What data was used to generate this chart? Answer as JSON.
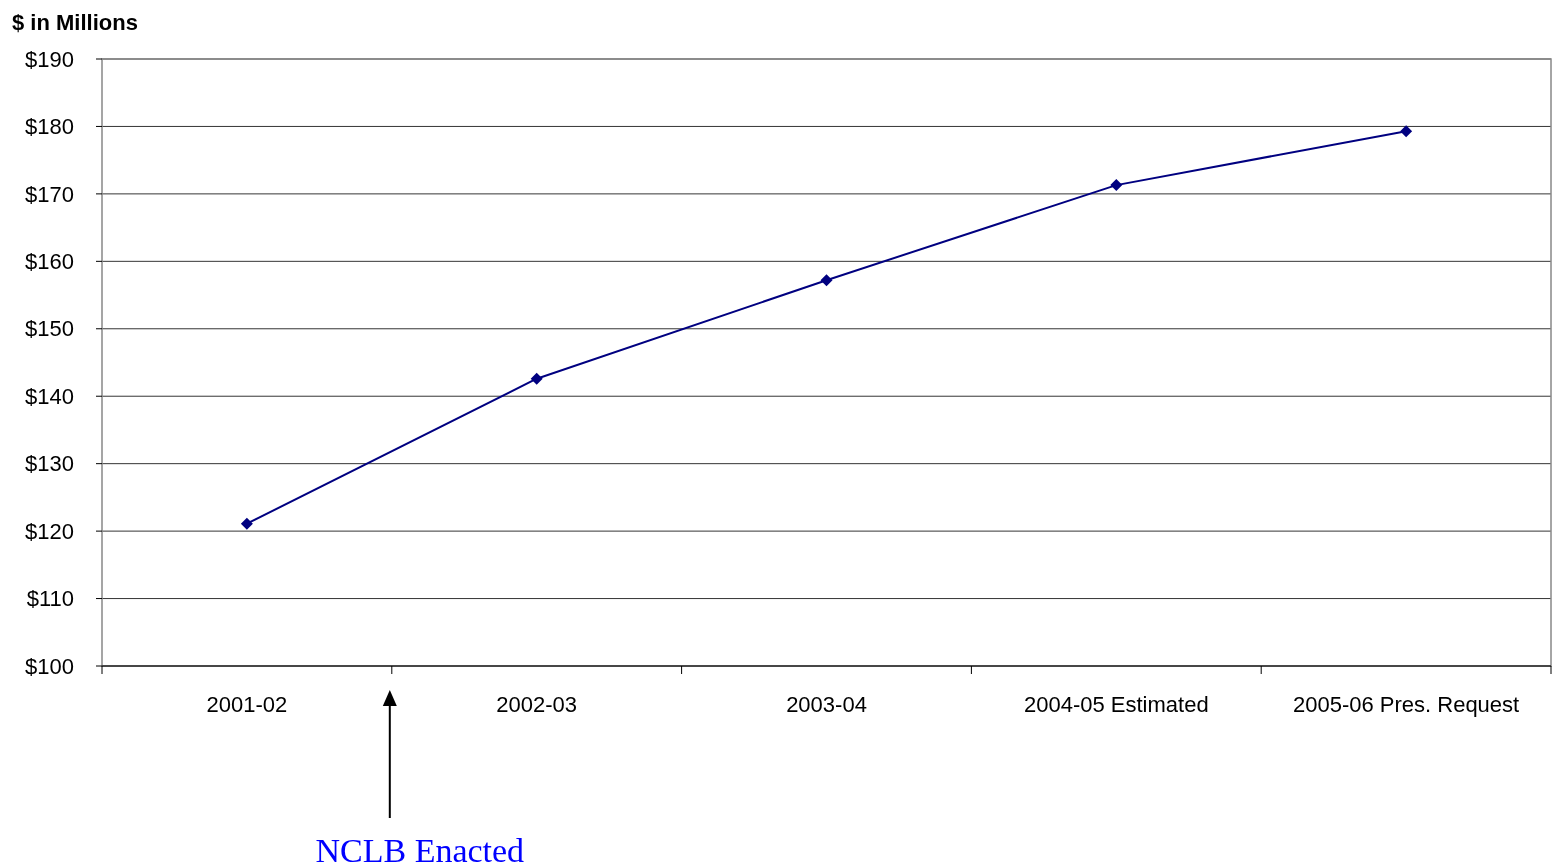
{
  "chart_data": {
    "type": "line",
    "ylabel": "$ in Millions",
    "categories": [
      "2001-02",
      "2002-03",
      "2003-04",
      "2004-05 Estimated",
      "2005-06 Pres. Request"
    ],
    "series": [
      {
        "color": "#000080",
        "values": [
          121.1,
          142.6,
          157.2,
          171.3,
          179.3
        ]
      }
    ],
    "ylim": [
      100,
      190
    ],
    "yticks": [
      {
        "value": 100,
        "label": "$100"
      },
      {
        "value": 110,
        "label": "$110"
      },
      {
        "value": 120,
        "label": "$120"
      },
      {
        "value": 130,
        "label": "$130"
      },
      {
        "value": 140,
        "label": "$140"
      },
      {
        "value": 150,
        "label": "$150"
      },
      {
        "value": 160,
        "label": "$160"
      },
      {
        "value": 170,
        "label": "$170"
      },
      {
        "value": 180,
        "label": "$180"
      },
      {
        "value": 190,
        "label": "$190"
      }
    ],
    "grid": "y",
    "marker": "diamond",
    "line_style": "solid",
    "annotations": [
      "NCLB Enacted"
    ]
  }
}
